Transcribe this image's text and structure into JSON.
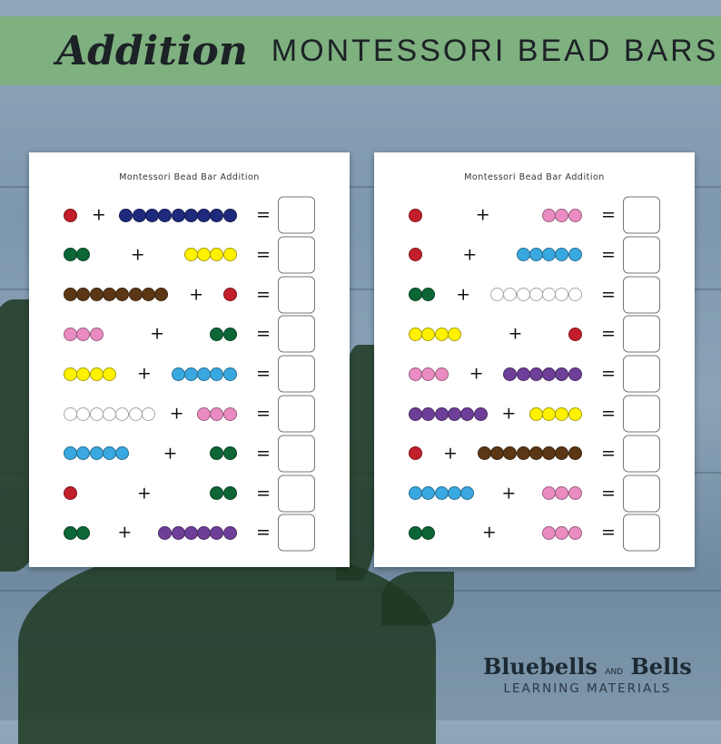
{
  "banner": {
    "script_title": "Addition",
    "title": "MONTESSORI BEAD BARS",
    "color": "#7fb07f"
  },
  "bead_colors": {
    "1": "#c21f2b",
    "2": "#0c6636",
    "3": "#ea8cc1",
    "4": "#fff200",
    "5": "#3aa8e0",
    "6": "#6e3f98",
    "7": "#ffffff",
    "8": "#5b3716",
    "9": "#1f2a7d"
  },
  "worksheets": [
    {
      "title": "Montessori Bead Bar Addition",
      "plus": "+",
      "equals": "=",
      "problems": [
        [
          1,
          9
        ],
        [
          2,
          4
        ],
        [
          8,
          1
        ],
        [
          3,
          2
        ],
        [
          4,
          5
        ],
        [
          7,
          3
        ],
        [
          5,
          2
        ],
        [
          1,
          2
        ],
        [
          2,
          6
        ]
      ]
    },
    {
      "title": "Montessori Bead Bar Addition",
      "plus": "+",
      "equals": "=",
      "problems": [
        [
          1,
          3
        ],
        [
          1,
          5
        ],
        [
          2,
          7
        ],
        [
          4,
          1
        ],
        [
          3,
          6
        ],
        [
          6,
          4
        ],
        [
          1,
          8
        ],
        [
          5,
          3
        ],
        [
          2,
          3
        ]
      ]
    }
  ],
  "logo": {
    "name_a": "Bluebells",
    "name_and": "AND",
    "name_b": "Bells",
    "subtitle": "LEARNING MATERIALS"
  }
}
